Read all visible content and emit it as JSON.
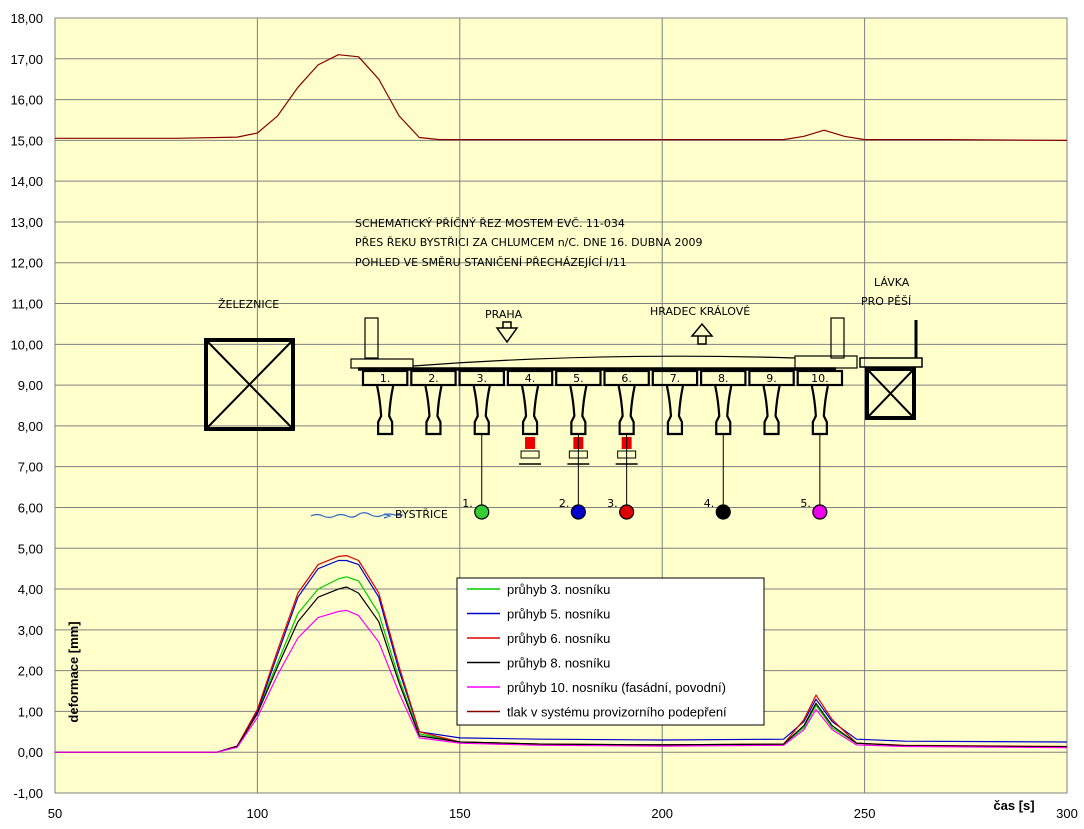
{
  "chart_data": {
    "type": "line",
    "xlabel": "čas [s]",
    "ylabel": "deformace [mm]",
    "xlim": [
      50,
      300
    ],
    "ylim": [
      -1,
      18
    ],
    "xticks": [
      50,
      100,
      150,
      200,
      250,
      300
    ],
    "yticks": [
      -1,
      0,
      1,
      2,
      3,
      4,
      5,
      6,
      7,
      8,
      9,
      10,
      11,
      12,
      13,
      14,
      15,
      16,
      17,
      18
    ],
    "ytick_labels": [
      "-1,00",
      "0,00",
      "1,00",
      "2,00",
      "3,00",
      "4,00",
      "5,00",
      "6,00",
      "7,00",
      "8,00",
      "9,00",
      "10,00",
      "11,00",
      "12,00",
      "13,00",
      "14,00",
      "15,00",
      "16,00",
      "17,00",
      "18,00"
    ],
    "grid": true,
    "plot_background": "#ffffcc",
    "legend_position": "center-bottom",
    "series": [
      {
        "name": "průhyb 3. nosníku",
        "color": "#00cc00",
        "x": [
          50,
          90,
          95,
          100,
          105,
          110,
          115,
          120,
          122,
          125,
          130,
          135,
          140,
          150,
          170,
          200,
          230,
          235,
          238,
          242,
          248,
          260,
          300
        ],
        "y": [
          0,
          0,
          0.15,
          1.0,
          2.2,
          3.4,
          4.0,
          4.25,
          4.3,
          4.2,
          3.4,
          1.8,
          0.45,
          0.25,
          0.2,
          0.18,
          0.2,
          0.6,
          1.15,
          0.6,
          0.22,
          0.16,
          0.12
        ]
      },
      {
        "name": "průhyb 5. nosníku",
        "color": "#0000cc",
        "x": [
          50,
          90,
          95,
          100,
          105,
          110,
          115,
          120,
          122,
          125,
          130,
          135,
          140,
          150,
          170,
          200,
          230,
          235,
          238,
          242,
          248,
          260,
          300
        ],
        "y": [
          0,
          0,
          0.15,
          1.0,
          2.4,
          3.8,
          4.5,
          4.7,
          4.7,
          4.6,
          3.8,
          2.0,
          0.5,
          0.35,
          0.32,
          0.3,
          0.32,
          0.75,
          1.3,
          0.75,
          0.32,
          0.27,
          0.25
        ]
      },
      {
        "name": "průhyb 6. nosníku",
        "color": "#dd0000",
        "x": [
          50,
          90,
          95,
          100,
          105,
          110,
          115,
          120,
          122,
          125,
          130,
          135,
          140,
          150,
          170,
          200,
          230,
          235,
          238,
          242,
          248,
          260,
          300
        ],
        "y": [
          0,
          0,
          0.15,
          1.05,
          2.5,
          3.9,
          4.6,
          4.8,
          4.82,
          4.7,
          3.9,
          2.1,
          0.5,
          0.25,
          0.2,
          0.18,
          0.2,
          0.8,
          1.4,
          0.8,
          0.22,
          0.17,
          0.14
        ]
      },
      {
        "name": "průhyb 8. nosníku",
        "color": "#000000",
        "x": [
          50,
          90,
          95,
          100,
          105,
          110,
          115,
          120,
          122,
          125,
          130,
          135,
          140,
          150,
          170,
          200,
          230,
          235,
          238,
          242,
          248,
          260,
          300
        ],
        "y": [
          0,
          0,
          0.14,
          0.95,
          2.1,
          3.2,
          3.8,
          4.0,
          4.05,
          3.9,
          3.2,
          1.7,
          0.4,
          0.25,
          0.2,
          0.18,
          0.2,
          0.65,
          1.2,
          0.65,
          0.22,
          0.16,
          0.13
        ]
      },
      {
        "name": "průhyb 10. nosníku (fasádní, povodní)",
        "color": "#ff00ff",
        "x": [
          50,
          90,
          95,
          100,
          105,
          110,
          115,
          120,
          122,
          125,
          130,
          135,
          140,
          150,
          170,
          200,
          230,
          235,
          238,
          242,
          248,
          260,
          300
        ],
        "y": [
          0,
          0,
          0.12,
          0.85,
          1.9,
          2.8,
          3.3,
          3.45,
          3.48,
          3.35,
          2.7,
          1.45,
          0.35,
          0.22,
          0.17,
          0.15,
          0.17,
          0.55,
          1.05,
          0.55,
          0.18,
          0.14,
          0.11
        ]
      },
      {
        "name": "tlak v systému provizorního podepření",
        "color": "#880000",
        "x": [
          50,
          80,
          95,
          100,
          105,
          110,
          115,
          120,
          125,
          130,
          135,
          140,
          145,
          160,
          200,
          230,
          235,
          240,
          245,
          250,
          270,
          300
        ],
        "y": [
          15.05,
          15.05,
          15.08,
          15.18,
          15.6,
          16.3,
          16.85,
          17.1,
          17.05,
          16.5,
          15.6,
          15.07,
          15.02,
          15.02,
          15.02,
          15.02,
          15.1,
          15.25,
          15.1,
          15.02,
          15.02,
          15.0
        ]
      }
    ]
  },
  "sketch": {
    "caption_1": "SCHEMATICKÝ PŘÍČNÝ ŘEZ MOSTEM EVČ. 11-034",
    "caption_2": "PŘES ŘEKU BYSTŘICI ZA CHLUMCEM n/C. DNE 16. DUBNA 2009",
    "caption_3": "POHLED VE SMĚRU STANIČENÍ PŘECHÁZEJÍCÍ I/11",
    "railway": "ŽELEZNICE",
    "footbridge_1": "LÁVKA",
    "footbridge_2": "PRO PĚŠÍ",
    "praha": "PRAHA",
    "hradec": "HRADEC KRÁLOVÉ",
    "river": "BYSTŘICE",
    "beam_numbers": [
      "1.",
      "2.",
      "3.",
      "4.",
      "5.",
      "6.",
      "7.",
      "8.",
      "9.",
      "10."
    ],
    "sensors": [
      {
        "label": "1.",
        "beam": 3,
        "color": "#33cc33"
      },
      {
        "label": "2.",
        "beam": 5,
        "color": "#0000cc"
      },
      {
        "label": "3.",
        "beam": 6,
        "color": "#dd0000"
      },
      {
        "label": "4.",
        "beam": 8,
        "color": "#000000"
      },
      {
        "label": "5.",
        "beam": 10,
        "color": "#ee00ee"
      }
    ],
    "jack_color": "#ee0000"
  }
}
